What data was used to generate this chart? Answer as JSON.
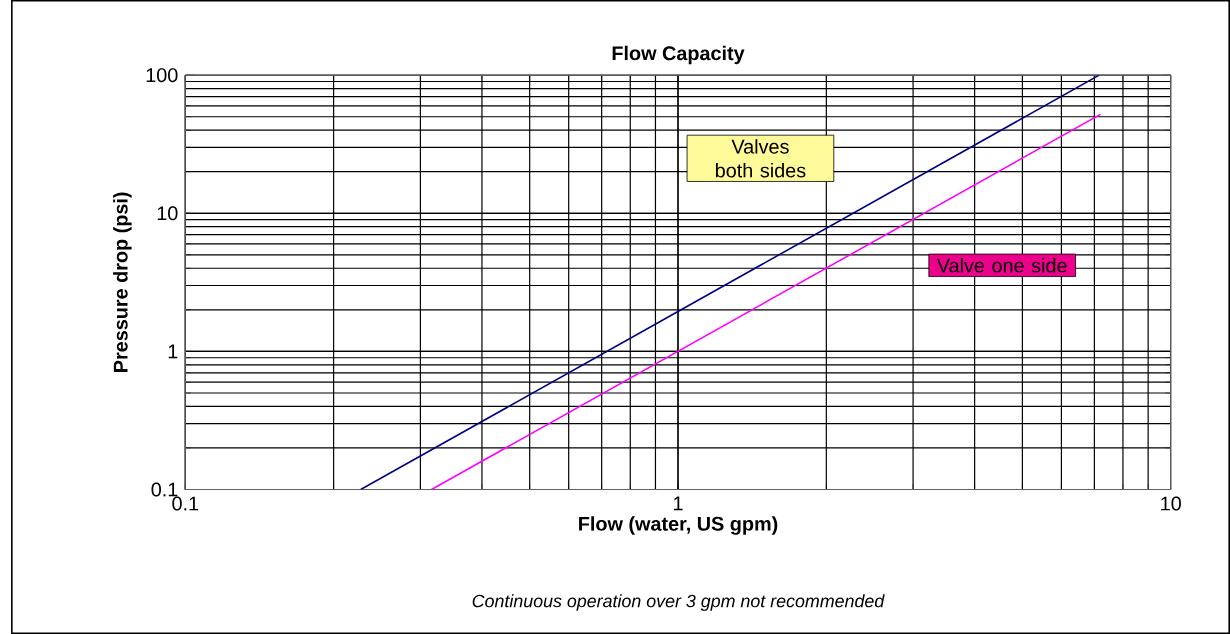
{
  "chart_data": {
    "type": "line",
    "title": "Flow Capacity",
    "xlabel": "Flow (water, US gpm)",
    "ylabel": "Pressure drop (psi)",
    "annotations": [
      "Continuous operation over 3 gpm not recommended"
    ],
    "log": "xy",
    "grid": true,
    "xlim": [
      0.1,
      10
    ],
    "xticks": [
      0.1,
      1,
      10
    ],
    "ylim": [
      0.1,
      100
    ],
    "yticks": [
      0.1,
      1,
      10,
      100
    ],
    "series": [
      {
        "name": "Valves both sides",
        "color": "#000080",
        "x": [
          0.227,
          7.16
        ],
        "values": [
          0.1,
          100
        ]
      },
      {
        "name": "Valve one side",
        "color": "#ff00ff",
        "x": [
          0.316,
          7.2
        ],
        "values": [
          0.1,
          52
        ]
      }
    ]
  }
}
